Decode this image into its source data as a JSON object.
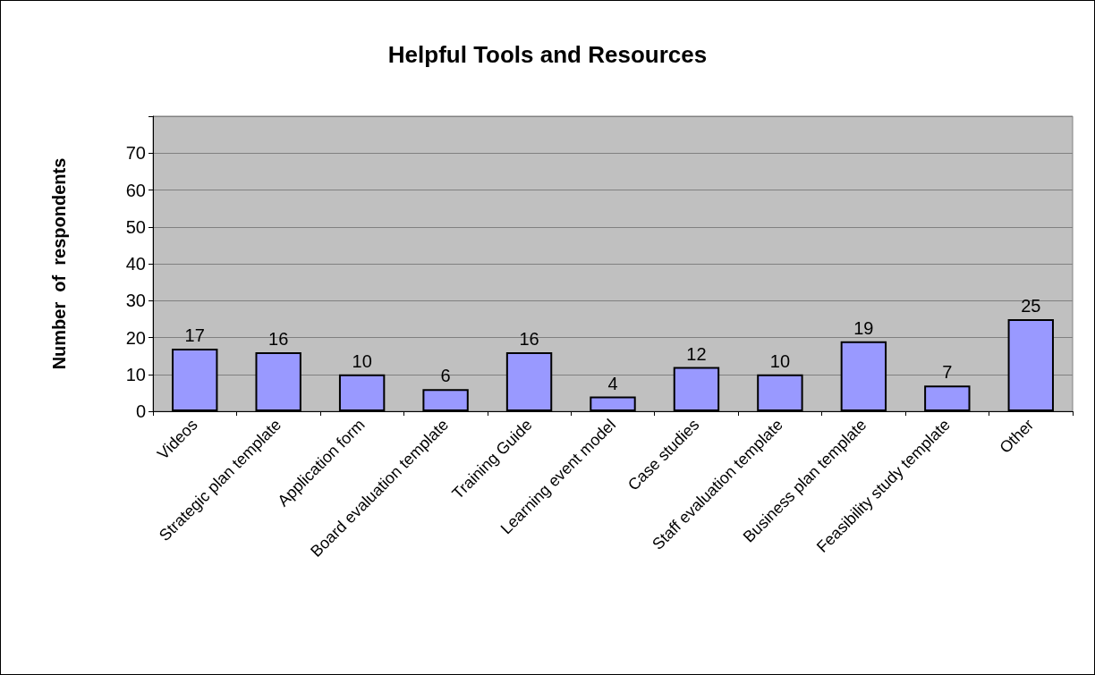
{
  "chart_data": {
    "type": "bar",
    "title": "Helpful Tools and Resources",
    "ylabel": "Number  of  respondents",
    "categories": [
      "Videos",
      "Strategic plan template",
      "Application form",
      "Board evaluation template",
      "Training Guide",
      "Learning event model",
      "Case studies",
      "Staff evaluation template",
      "Business plan template",
      "Feasibility study template",
      "Other"
    ],
    "values": [
      17,
      16,
      10,
      6,
      16,
      4,
      12,
      10,
      19,
      7,
      25
    ],
    "color": "#9999ff",
    "ylim": [
      0,
      80
    ],
    "yticks": [
      0,
      10,
      20,
      30,
      40,
      50,
      60,
      70,
      {
        "value": 80,
        "label": null
      }
    ],
    "grid": "y",
    "data_labels": true
  }
}
